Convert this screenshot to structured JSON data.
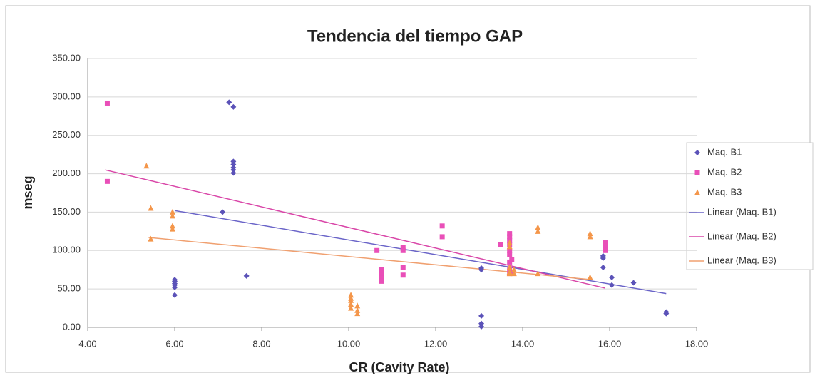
{
  "chart_data": {
    "type": "scatter",
    "title": "Tendencia del tiempo GAP",
    "x_label": "CR (Cavity Rate)",
    "y_label": "mseg",
    "xlim": [
      4,
      18
    ],
    "ylim": [
      0,
      350
    ],
    "xticks": [
      {
        "value": 4,
        "label": "4.00"
      },
      {
        "value": 6,
        "label": "6.00"
      },
      {
        "value": 8,
        "label": "8.00"
      },
      {
        "value": 10,
        "label": "10.00"
      },
      {
        "value": 12,
        "label": "12.00"
      },
      {
        "value": 14,
        "label": "14.00"
      },
      {
        "value": 16,
        "label": "16.00"
      },
      {
        "value": 18,
        "label": "18.00"
      }
    ],
    "yticks": [
      {
        "value": 0,
        "label": "0.00"
      },
      {
        "value": 50,
        "label": "50.00"
      },
      {
        "value": 100,
        "label": "100.00"
      },
      {
        "value": 150,
        "label": "150.00"
      },
      {
        "value": 200,
        "label": "200.00"
      },
      {
        "value": 250,
        "label": "250.00"
      },
      {
        "value": 300,
        "label": "300.00"
      },
      {
        "value": 350,
        "label": "350.00"
      }
    ],
    "grid": true,
    "legend": "right",
    "series": [
      {
        "name": "Maq. B1",
        "color": "#5b52b8",
        "marker": "diamond",
        "x": [
          6,
          6,
          6,
          6,
          6,
          6,
          7.1,
          7.25,
          7.35,
          7.35,
          7.35,
          7.35,
          7.35,
          7.35,
          7.65,
          13.05,
          13.05,
          13.05,
          13.05,
          13.05,
          15.85,
          15.85,
          15.85,
          16.05,
          16.05,
          16.55,
          17.3,
          17.3
        ],
        "values": [
          42,
          52,
          55,
          57,
          60,
          62,
          150,
          293,
          287,
          216,
          212,
          208,
          205,
          201,
          67,
          77,
          75,
          15,
          5,
          1,
          93,
          90,
          78,
          65,
          55,
          58,
          20,
          18
        ]
      },
      {
        "name": "Maq. B2",
        "color": "#e94fb8",
        "marker": "square",
        "x": [
          4.45,
          4.45,
          10.65,
          10.75,
          10.75,
          10.75,
          10.75,
          10.75,
          11.25,
          11.25,
          11.25,
          11.25,
          12.15,
          12.15,
          13.5,
          13.7,
          13.7,
          13.7,
          13.7,
          13.7,
          13.7,
          13.7,
          13.7,
          13.7,
          13.75,
          13.75,
          15.9,
          15.9,
          15.9
        ],
        "values": [
          292,
          190,
          100,
          75,
          72,
          68,
          64,
          60,
          104,
          100,
          78,
          68,
          132,
          118,
          108,
          122,
          118,
          113,
          108,
          100,
          95,
          85,
          75,
          70,
          88,
          72,
          110,
          105,
          100
        ]
      },
      {
        "name": "Maq. B3",
        "color": "#f4964a",
        "marker": "triangle",
        "x": [
          5.35,
          5.45,
          5.45,
          5.95,
          5.95,
          5.95,
          5.95,
          10.05,
          10.05,
          10.05,
          10.05,
          10.05,
          10.2,
          10.2,
          10.2,
          13.7,
          13.7,
          13.7,
          13.7,
          13.7,
          13.8,
          13.8,
          14.35,
          14.35,
          14.35,
          15.55,
          15.55,
          15.55
        ],
        "values": [
          210,
          155,
          115,
          150,
          145,
          132,
          128,
          42,
          38,
          35,
          30,
          25,
          28,
          22,
          18,
          110,
          105,
          78,
          72,
          70,
          75,
          70,
          130,
          125,
          70,
          122,
          118,
          65
        ]
      }
    ],
    "trendlines": [
      {
        "name": "Linear (Maq. B1)",
        "color": "#6a64c8",
        "x": [
          6,
          17.3
        ],
        "values": [
          152,
          44
        ]
      },
      {
        "name": "Linear (Maq. B2)",
        "color": "#d946a8",
        "x": [
          4.4,
          15.9
        ],
        "values": [
          205,
          51
        ]
      },
      {
        "name": "Linear (Maq. B3)",
        "color": "#f0a070",
        "x": [
          5.4,
          15.6
        ],
        "values": [
          117,
          62
        ]
      }
    ]
  }
}
